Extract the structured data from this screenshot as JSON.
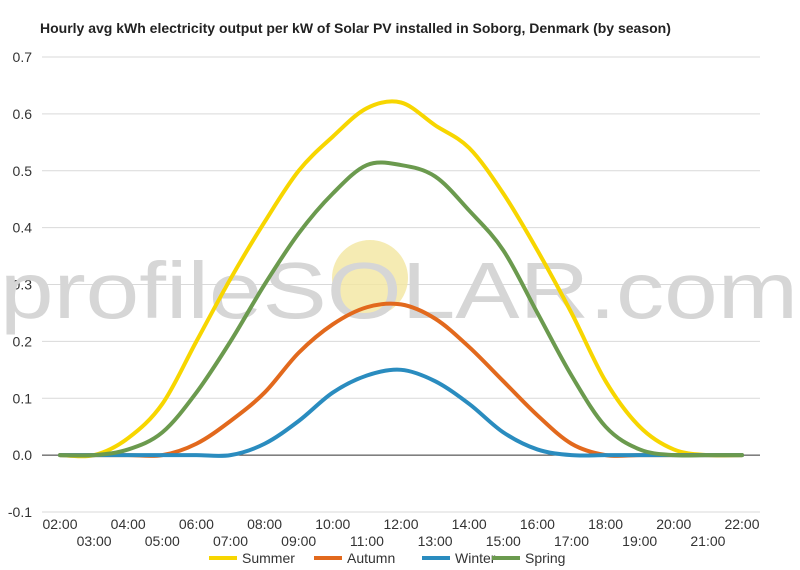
{
  "chart_data": {
    "type": "line",
    "title": "Hourly avg kWh electricity output per kW of Solar PV installed in Soborg, Denmark (by season)",
    "x": [
      "02:00",
      "03:00",
      "04:00",
      "05:00",
      "06:00",
      "07:00",
      "08:00",
      "09:00",
      "10:00",
      "11:00",
      "12:00",
      "13:00",
      "14:00",
      "15:00",
      "16:00",
      "17:00",
      "18:00",
      "19:00",
      "20:00",
      "21:00",
      "22:00"
    ],
    "ylim": [
      -0.1,
      0.7
    ],
    "yticks": [
      "-0.1",
      "0.0",
      "0.1",
      "0.2",
      "0.3",
      "0.4",
      "0.5",
      "0.6",
      "0.7"
    ],
    "grid": true,
    "legend_position": "bottom",
    "series": [
      {
        "name": "Summer",
        "color": "#f7d600",
        "values": [
          0.0,
          0.0,
          0.03,
          0.09,
          0.2,
          0.31,
          0.41,
          0.5,
          0.56,
          0.61,
          0.62,
          0.58,
          0.54,
          0.46,
          0.36,
          0.25,
          0.13,
          0.05,
          0.01,
          0.0,
          0.0
        ]
      },
      {
        "name": "Autumn",
        "color": "#e2691d",
        "values": [
          0.0,
          0.0,
          0.0,
          0.0,
          0.02,
          0.06,
          0.11,
          0.18,
          0.23,
          0.26,
          0.265,
          0.24,
          0.19,
          0.13,
          0.07,
          0.02,
          0.0,
          0.0,
          0.0,
          0.0,
          0.0
        ]
      },
      {
        "name": "Winter",
        "color": "#2a8cbf",
        "values": [
          0.0,
          0.0,
          0.0,
          0.0,
          0.0,
          0.0,
          0.02,
          0.06,
          0.11,
          0.14,
          0.15,
          0.13,
          0.09,
          0.04,
          0.01,
          0.0,
          0.0,
          0.0,
          0.0,
          0.0,
          0.0
        ]
      },
      {
        "name": "Spring",
        "color": "#6b9a4e",
        "values": [
          0.0,
          0.0,
          0.01,
          0.04,
          0.11,
          0.2,
          0.3,
          0.39,
          0.46,
          0.51,
          0.51,
          0.49,
          0.43,
          0.36,
          0.25,
          0.14,
          0.05,
          0.01,
          0.0,
          0.0,
          0.0
        ]
      }
    ]
  },
  "watermark": {
    "text": "profileSOLAR.com",
    "sun_color": "#f3e6a0"
  }
}
